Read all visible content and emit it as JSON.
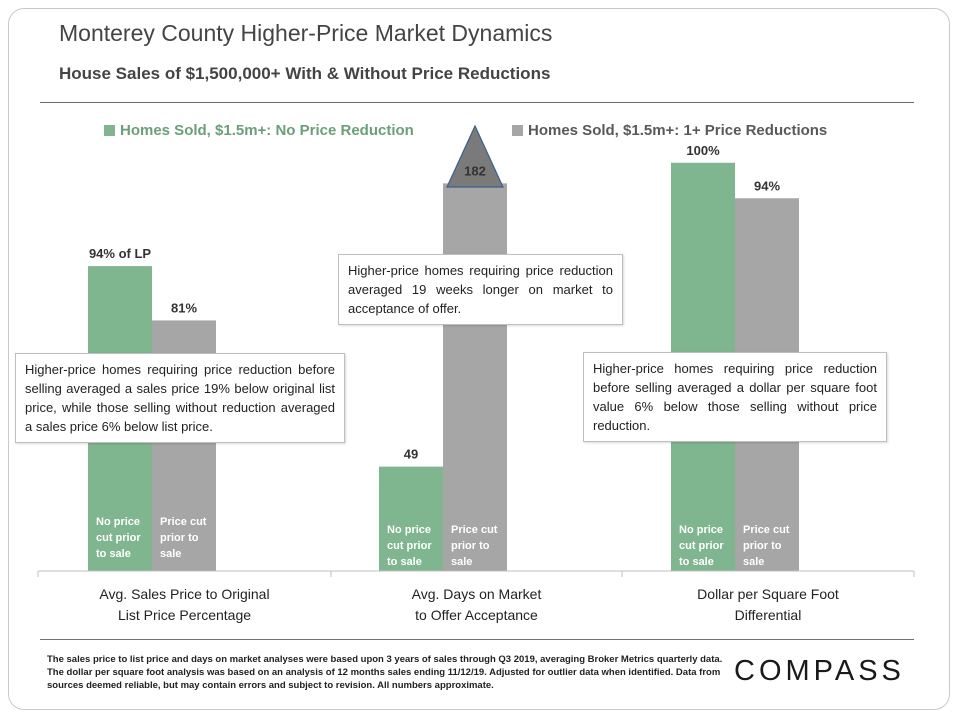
{
  "header": {
    "title": "Monterey County Higher-Price Market Dynamics",
    "subtitle": "House Sales of $1,500,000+ With & Without Price Reductions"
  },
  "legend": {
    "no_reduction": "Homes Sold, $1.5m+: No Price Reduction",
    "with_reduction": "Homes Sold, $1.5m+: 1+ Price Reductions"
  },
  "colors": {
    "no_reduction": "#7fb58f",
    "with_reduction": "#a6a6a6",
    "arrow": "#7a7a7a",
    "arrow_outline": "#3a5f8a"
  },
  "chart_data": {
    "type": "bar",
    "categories": [
      "Avg. Sales Price to Original List Price Percentage",
      "Avg. Days on Market to Offer Acceptance",
      "Dollar per Square Foot Differential"
    ],
    "series": [
      {
        "name": "Homes Sold, $1.5m+: No Price Reduction",
        "values": [
          94,
          49,
          100
        ],
        "labels": [
          "94% of LP",
          "49",
          "100%"
        ],
        "bar_text": "No price cut prior to sale"
      },
      {
        "name": "Homes Sold, $1.5m+: 1+ Price Reductions",
        "values": [
          81,
          182,
          94
        ],
        "labels": [
          "81%",
          "182",
          "94%"
        ],
        "bar_text": "Price cut prior to sale"
      }
    ],
    "group_scales": [
      {
        "zero": 21,
        "hundred": 123
      },
      {
        "zero": 0,
        "hundred": 200
      },
      {
        "zero": 31,
        "hundred": 103
      }
    ],
    "category_lines": [
      [
        "Avg. Sales Price to Original",
        "List Price Percentage"
      ],
      [
        "Avg. Days on Market",
        "to Offer Acceptance"
      ],
      [
        "Dollar per Square Foot",
        "Differential"
      ]
    ],
    "bar_text_lines": {
      "no_reduction": [
        "No price",
        "cut prior",
        "to sale"
      ],
      "with_reduction": [
        "Price cut",
        "prior to",
        "sale"
      ]
    },
    "legend_position": "top"
  },
  "callouts": [
    "Higher-price homes requiring price reduction before selling averaged a sales price 19% below original list price, while those selling without reduction averaged a sales price 6% below list price.",
    "Higher-price homes requiring price reduction averaged 19 weeks longer on market to acceptance of offer.",
    "Higher-price homes requiring price reduction before selling averaged a dollar per square foot value 6% below those selling without price reduction."
  ],
  "footnote": "The sales price to list price and days on market analyses were based upon 3 years of sales through Q3 2019, averaging Broker Metrics quarterly data. The dollar per square foot analysis was based on an analysis of 12 months sales ending 11/12/19. Adjusted for outlier data when identified. Data from sources deemed reliable, but may contain errors and subject to revision. All numbers approximate.",
  "logo": "COMPASS"
}
